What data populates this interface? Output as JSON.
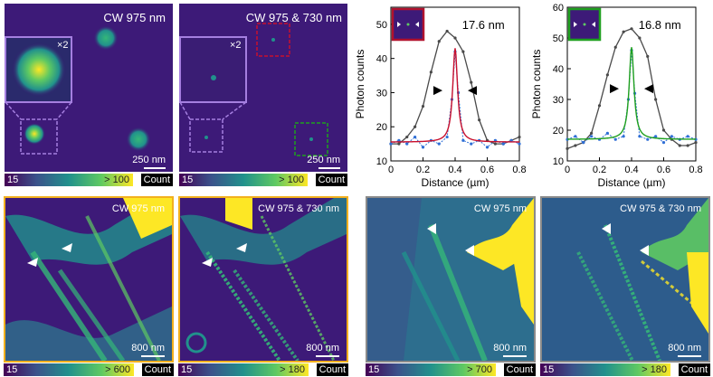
{
  "figure": {
    "panels_top": [
      {
        "title": "CW 975 nm",
        "inset_label": "×2",
        "scale": "250 nm"
      },
      {
        "title": "CW 975 & 730 nm",
        "inset_label": "×2",
        "scale": "250 nm"
      }
    ],
    "colorbars_top": [
      {
        "low": "15",
        "high": "> 100",
        "unit": "Count"
      },
      {
        "low": "15",
        "high": "> 100",
        "unit": "Count"
      }
    ],
    "panels_bottom": [
      {
        "title": "CW 975 nm",
        "scale": "800 nm",
        "border": "#f2b01e",
        "low": "15",
        "high": "> 600",
        "unit": "Count"
      },
      {
        "title": "CW 975 & 730 nm",
        "scale": "800 nm",
        "border": "#f2b01e",
        "low": "15",
        "high": "> 180",
        "unit": "Count"
      },
      {
        "title": "CW 975 nm",
        "scale": "800 nm",
        "border": "#8a8a8a",
        "low": "15",
        "high": "> 700",
        "unit": "Count"
      },
      {
        "title": "CW 975 & 730 nm",
        "scale": "800 nm",
        "border": "#8a8a8a",
        "low": "15",
        "high": "> 180",
        "unit": "Count"
      }
    ],
    "colors": {
      "purple": "#a57fe0",
      "red": "#c8102e",
      "green": "#1fa01f",
      "gold": "#f2b01e",
      "gray": "#8a8a8a"
    }
  },
  "chart_data": [
    {
      "type": "line",
      "annotation": "17.6 nm",
      "xlabel": "Distance (µm)",
      "ylabel": "Photon counts",
      "xlim": [
        0,
        0.8
      ],
      "ylim": [
        10,
        55
      ],
      "xticks": [
        "0",
        "0.2",
        "0.4",
        "0.6",
        "0.8"
      ],
      "yticks": [
        "10",
        "20",
        "30",
        "40",
        "50"
      ],
      "inset_border": "#b1122e",
      "fit_color": "#c8102e",
      "series": [
        {
          "style": "gray",
          "x": [
            0,
            0.05,
            0.1,
            0.15,
            0.2,
            0.25,
            0.3,
            0.35,
            0.4,
            0.45,
            0.5,
            0.55,
            0.6,
            0.65,
            0.7,
            0.75,
            0.8
          ],
          "y": [
            15,
            15,
            17,
            20,
            26,
            36,
            45,
            48,
            46,
            42,
            33,
            22,
            16,
            15,
            15,
            16,
            17
          ]
        },
        {
          "style": "blue",
          "x": [
            0,
            0.05,
            0.1,
            0.15,
            0.2,
            0.25,
            0.3,
            0.35,
            0.38,
            0.4,
            0.42,
            0.45,
            0.5,
            0.55,
            0.6,
            0.65,
            0.7,
            0.75,
            0.8
          ],
          "y": [
            15,
            16,
            15,
            17,
            14,
            16,
            15,
            17,
            28,
            42,
            30,
            16,
            15,
            16,
            14,
            16,
            15,
            16,
            15
          ]
        }
      ],
      "fit_center": 0.4,
      "fit_width": 0.018,
      "fit_peak": 43,
      "fit_base": 15.5
    },
    {
      "type": "line",
      "annotation": "16.8 nm",
      "xlabel": "Distance (µm)",
      "ylabel": "Photon counts",
      "xlim": [
        0,
        0.8
      ],
      "ylim": [
        10,
        60
      ],
      "xticks": [
        "0",
        "0.2",
        "0.4",
        "0.6",
        "0.8"
      ],
      "yticks": [
        "10",
        "20",
        "30",
        "40",
        "50",
        "60"
      ],
      "inset_border": "#1fa01f",
      "fit_color": "#1fa01f",
      "series": [
        {
          "style": "gray",
          "x": [
            0,
            0.05,
            0.1,
            0.15,
            0.2,
            0.25,
            0.3,
            0.35,
            0.4,
            0.45,
            0.5,
            0.55,
            0.6,
            0.65,
            0.7,
            0.75,
            0.8
          ],
          "y": [
            14,
            15,
            16,
            19,
            28,
            38,
            47,
            52,
            53,
            50,
            44,
            30,
            20,
            17,
            15,
            15,
            16
          ]
        },
        {
          "style": "blue",
          "x": [
            0,
            0.05,
            0.1,
            0.15,
            0.2,
            0.25,
            0.3,
            0.35,
            0.38,
            0.4,
            0.42,
            0.45,
            0.5,
            0.55,
            0.6,
            0.65,
            0.7,
            0.75,
            0.8
          ],
          "y": [
            17,
            18,
            16,
            18,
            17,
            19,
            17,
            18,
            30,
            46,
            32,
            18,
            17,
            18,
            16,
            18,
            17,
            18,
            17
          ]
        }
      ],
      "fit_center": 0.4,
      "fit_width": 0.018,
      "fit_peak": 47,
      "fit_base": 17
    }
  ]
}
